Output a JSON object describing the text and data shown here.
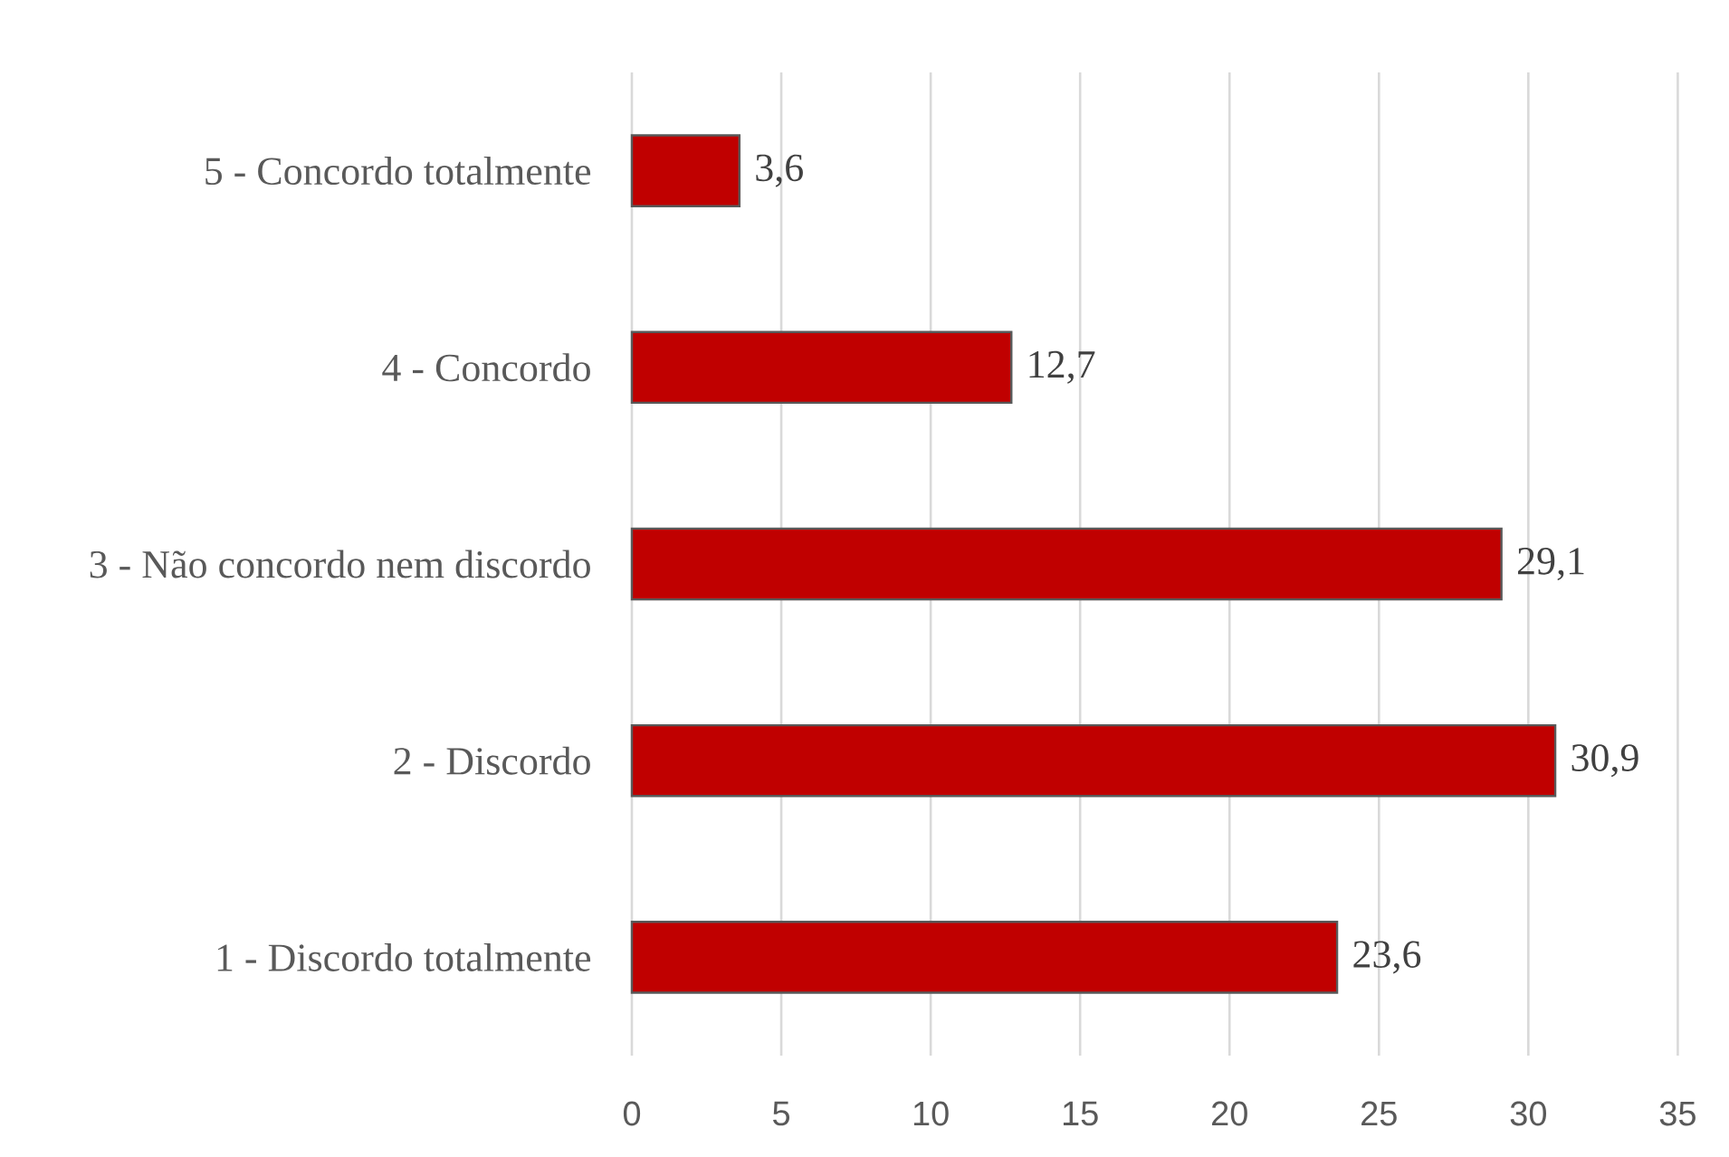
{
  "chart_data": {
    "type": "bar",
    "orientation": "horizontal",
    "categories": [
      "5 - Concordo totalmente",
      "4 - Concordo",
      "3 - Não concordo nem discordo",
      "2 - Discordo",
      "1 - Discordo totalmente"
    ],
    "values": [
      3.6,
      12.7,
      29.1,
      30.9,
      23.6
    ],
    "color": "#c00000",
    "value_labels": [
      "3,6",
      "12,7",
      "29,1",
      "30,9",
      "23,6"
    ],
    "xlim": [
      0,
      35
    ],
    "xticks": [
      0,
      5,
      10,
      15,
      20,
      25,
      30,
      35
    ],
    "grid": "x"
  }
}
